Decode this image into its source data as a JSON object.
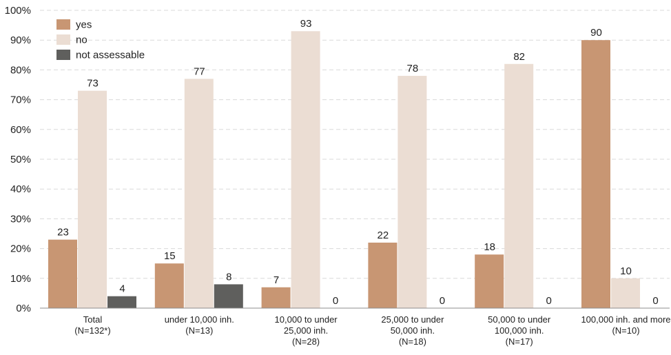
{
  "chart_data": {
    "type": "bar",
    "categories": [
      [
        "Total",
        "(N=132*)"
      ],
      [
        "under 10,000 inh.",
        "(N=13)"
      ],
      [
        "10,000 to under",
        "25,000 inh.",
        "(N=28)"
      ],
      [
        "25,000 to under",
        "50,000 inh.",
        "(N=18)"
      ],
      [
        "50,000 to under",
        "100,000 inh.",
        "(N=17)"
      ],
      [
        "100,000 inh. and more",
        "(N=10)"
      ]
    ],
    "series": [
      {
        "name": "yes",
        "color": "#c89673",
        "values": [
          23,
          15,
          7,
          22,
          18,
          90
        ]
      },
      {
        "name": "no",
        "color": "#ebddd3",
        "values": [
          73,
          77,
          93,
          78,
          82,
          10
        ]
      },
      {
        "name": "not assessable",
        "color": "#5f5f5d",
        "values": [
          4,
          8,
          0,
          0,
          0,
          0
        ]
      }
    ],
    "value_labels": [
      [
        "23",
        "73",
        "4"
      ],
      [
        "15",
        "77",
        "8"
      ],
      [
        "7",
        "93",
        "0"
      ],
      [
        "22",
        "78",
        "0"
      ],
      [
        "18",
        "82",
        "0"
      ],
      [
        "90",
        "10",
        "0"
      ]
    ],
    "yticks": [
      "0%",
      "10%",
      "20%",
      "30%",
      "40%",
      "50%",
      "60%",
      "70%",
      "80%",
      "90%",
      "100%"
    ],
    "ylim": [
      0,
      100
    ],
    "title": "",
    "xlabel": "",
    "ylabel": "",
    "grid": true,
    "legend_position": "top-left"
  }
}
